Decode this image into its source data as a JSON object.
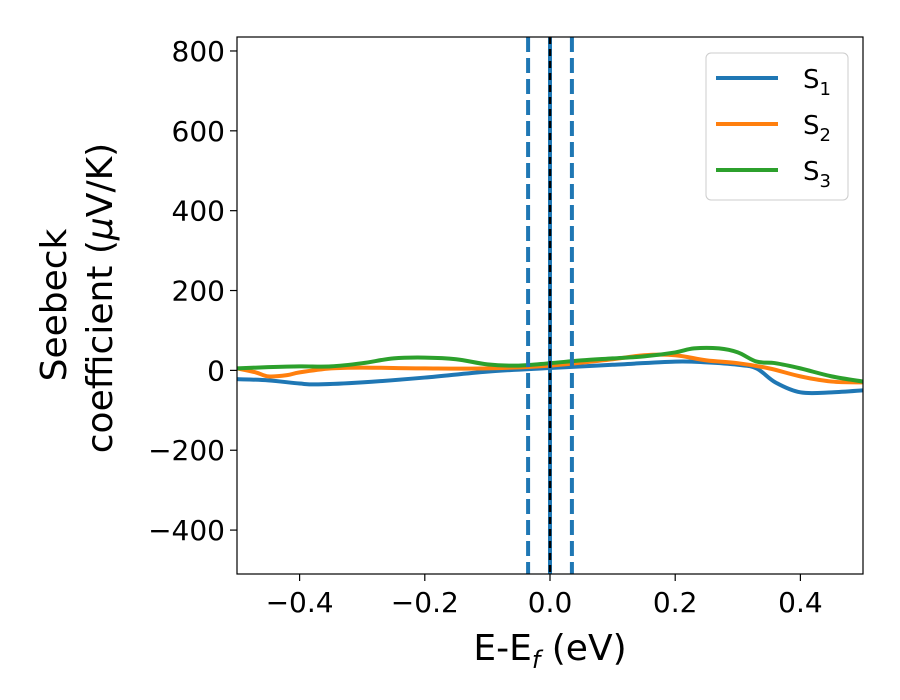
{
  "chart_data": {
    "type": "line",
    "xlabel": {
      "main": "E-E",
      "sub": "f",
      "tail": " (eV)"
    },
    "ylabel": {
      "line1": "Seebeck",
      "line2": "coefficient  (",
      "mu": "μ",
      "line2_tail": "V/K)"
    },
    "xlim": [
      -0.5,
      0.5
    ],
    "ylim": [
      -510,
      835
    ],
    "xticks": [
      -0.4,
      -0.2,
      0.0,
      0.2,
      0.4
    ],
    "xtick_labels": [
      "−0.4",
      "−0.2",
      "0.0",
      "0.2",
      "0.4"
    ],
    "yticks": [
      -400,
      -200,
      0,
      200,
      400,
      600,
      800
    ],
    "ytick_labels": [
      "−400",
      "−200",
      "0",
      "200",
      "400",
      "600",
      "800"
    ],
    "legend_position": "top-right",
    "series": [
      {
        "name": "S",
        "sub": "1",
        "color": "#1f77b4",
        "x": [
          -0.5,
          -0.45,
          -0.4,
          -0.37,
          -0.3,
          -0.2,
          -0.1,
          0.0,
          0.1,
          0.2,
          0.25,
          0.3,
          0.33,
          0.36,
          0.4,
          0.45,
          0.5
        ],
        "y": [
          -22,
          -25,
          -33,
          -35,
          -30,
          -18,
          -3,
          6,
          14,
          22,
          20,
          14,
          5,
          -30,
          -55,
          -55,
          -50
        ]
      },
      {
        "name": "S",
        "sub": "2",
        "color": "#ff7f0e",
        "x": [
          -0.5,
          -0.47,
          -0.45,
          -0.42,
          -0.4,
          -0.35,
          -0.3,
          -0.2,
          -0.1,
          0.0,
          0.1,
          0.15,
          0.2,
          0.25,
          0.3,
          0.35,
          0.4,
          0.45,
          0.5
        ],
        "y": [
          5,
          -5,
          -15,
          -12,
          -5,
          5,
          7,
          5,
          5,
          12,
          28,
          38,
          38,
          25,
          18,
          5,
          -15,
          -28,
          -30
        ]
      },
      {
        "name": "S",
        "sub": "3",
        "color": "#2ca02c",
        "x": [
          -0.5,
          -0.45,
          -0.4,
          -0.35,
          -0.3,
          -0.25,
          -0.2,
          -0.15,
          -0.1,
          -0.05,
          0.0,
          0.05,
          0.1,
          0.15,
          0.2,
          0.23,
          0.27,
          0.3,
          0.33,
          0.36,
          0.4,
          0.45,
          0.5
        ],
        "y": [
          5,
          8,
          10,
          10,
          18,
          30,
          32,
          28,
          15,
          12,
          18,
          25,
          30,
          35,
          45,
          55,
          55,
          45,
          22,
          18,
          5,
          -15,
          -28
        ]
      }
    ],
    "vlines": [
      {
        "x": -0.035,
        "color": "#1f77b4",
        "style": "dashed"
      },
      {
        "x": 0.0,
        "color": "#1f77b4",
        "style": "solid"
      },
      {
        "x": 0.0,
        "color": "#000000",
        "style": "dashed"
      },
      {
        "x": 0.035,
        "color": "#1f77b4",
        "style": "dashed"
      }
    ]
  }
}
